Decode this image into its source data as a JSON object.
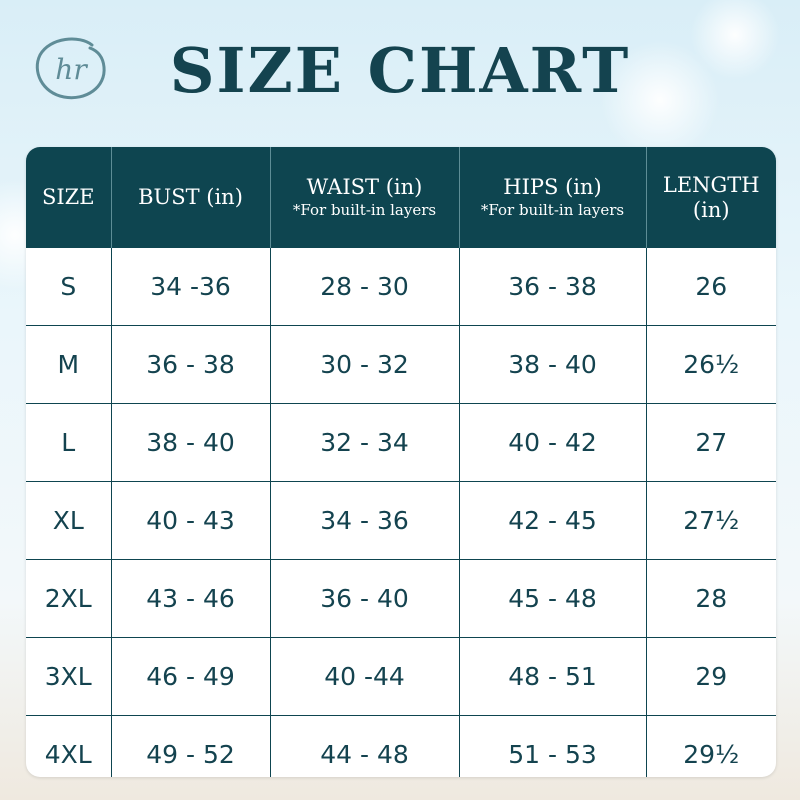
{
  "title": "SIZE CHART",
  "logo": {
    "monogram": "hr"
  },
  "table": {
    "headers": [
      {
        "label": "SIZE",
        "note": ""
      },
      {
        "label": "BUST (in)",
        "note": ""
      },
      {
        "label": "WAIST (in)",
        "note": "*For built-in layers"
      },
      {
        "label": "HIPS (in)",
        "note": "*For built-in layers"
      },
      {
        "label": "LENGTH (in)",
        "note": ""
      }
    ],
    "rows": [
      [
        "S",
        "34 -36",
        "28 - 30",
        "36 - 38",
        "26"
      ],
      [
        "M",
        "36 - 38",
        "30 - 32",
        "38 - 40",
        "26½"
      ],
      [
        "L",
        "38 - 40",
        "32 - 34",
        "40 - 42",
        "27"
      ],
      [
        "XL",
        "40 - 43",
        "34 - 36",
        "42 - 45",
        "27½"
      ],
      [
        "2XL",
        "43 - 46",
        "36 - 40",
        "45 - 48",
        "28"
      ],
      [
        "3XL",
        "46 - 49",
        "40 -44",
        "48 - 51",
        "29"
      ],
      [
        "4XL",
        "49 - 52",
        "44 - 48",
        "51 - 53",
        "29½"
      ]
    ]
  },
  "colors": {
    "header_bg": "#0e4550",
    "text": "#14434f",
    "grid": "#0e4550"
  }
}
